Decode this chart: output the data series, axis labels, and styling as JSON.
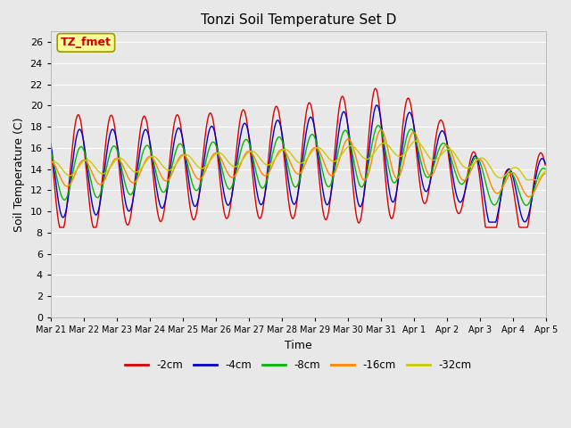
{
  "title": "Tonzi Soil Temperature Set D",
  "xlabel": "Time",
  "ylabel": "Soil Temperature (C)",
  "annotation_text": "TZ_fmet",
  "annotation_color": "#cc0000",
  "annotation_bg": "#ffff99",
  "legend_labels": [
    "-2cm",
    "-4cm",
    "-8cm",
    "-16cm",
    "-32cm"
  ],
  "line_colors": [
    "#dd0000",
    "#0000cc",
    "#00bb00",
    "#ff8800",
    "#cccc00"
  ],
  "ylim": [
    0,
    27
  ],
  "yticks": [
    0,
    2,
    4,
    6,
    8,
    10,
    12,
    14,
    16,
    18,
    20,
    22,
    24,
    26
  ],
  "bg_color": "#e8e8e8",
  "grid_color": "#ffffff",
  "tick_labels": [
    "Mar 21",
    "Mar 22",
    "Mar 23",
    "Mar 24",
    "Mar 25",
    "Mar 26",
    "Mar 27",
    "Mar 28",
    "Mar 29",
    "Mar 30",
    "Mar 31",
    "Apr 1",
    "Apr 2",
    "Apr 3",
    "Apr 4",
    "Apr 5"
  ]
}
